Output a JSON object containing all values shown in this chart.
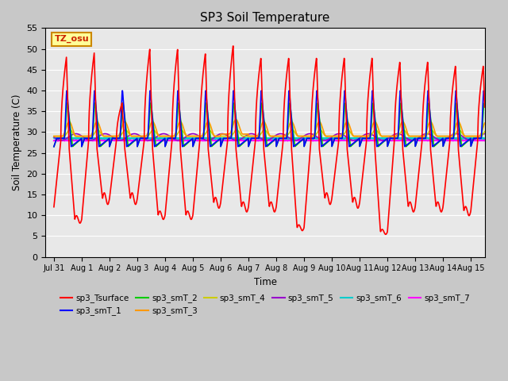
{
  "title": "SP3 Soil Temperature",
  "xlabel": "Time",
  "ylabel": "Soil Temperature (C)",
  "ylim": [
    0,
    55
  ],
  "yticks": [
    0,
    5,
    10,
    15,
    20,
    25,
    30,
    35,
    40,
    45,
    50,
    55
  ],
  "tz_label": "TZ_osu",
  "series_colors": {
    "sp3_Tsurface": "#ff0000",
    "sp3_smT_1": "#0000ff",
    "sp3_smT_2": "#00cc00",
    "sp3_smT_3": "#ff9900",
    "sp3_smT_4": "#cccc00",
    "sp3_smT_5": "#9900cc",
    "sp3_smT_6": "#00cccc",
    "sp3_smT_7": "#ff00ff"
  },
  "tick_labels": [
    "Jul 31",
    "Aug 1",
    "Aug 2",
    "Aug 3",
    "Aug 4",
    "Aug 5",
    "Aug 6",
    "Aug 7",
    "Aug 8",
    "Aug 9",
    "Aug 10",
    "Aug 11",
    "Aug 12",
    "Aug 13",
    "Aug 14",
    "Aug 15"
  ]
}
